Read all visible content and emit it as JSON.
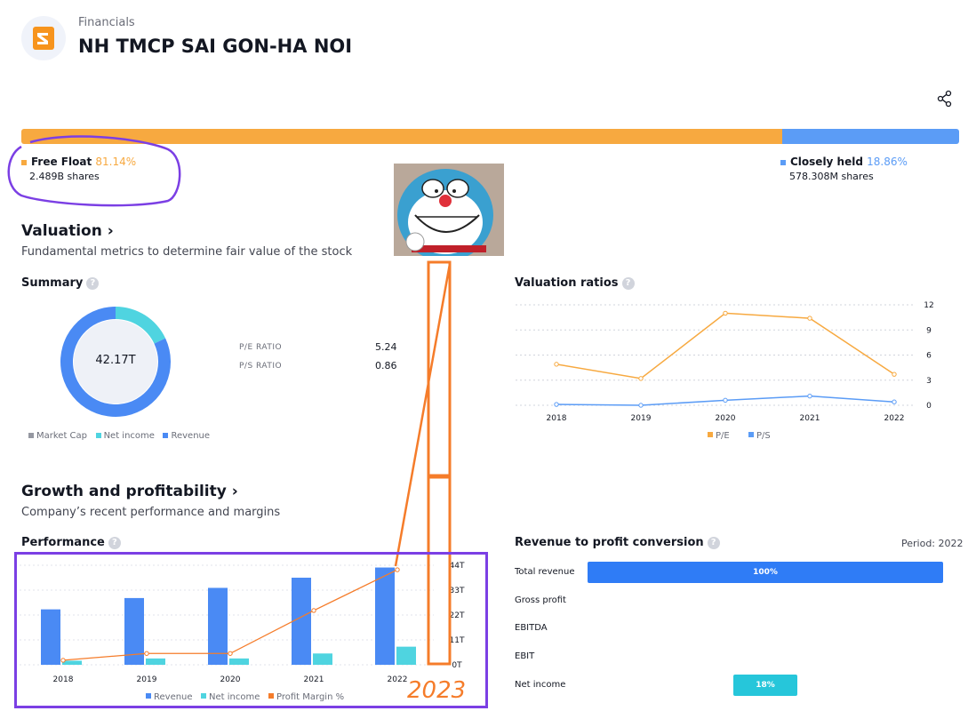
{
  "header": {
    "kicker": "Financials",
    "title": "NH TMCP SAI GON-HA NOI"
  },
  "float": {
    "free_label": "Free Float",
    "free_pct": "81.14%",
    "free_pct_value": 81.14,
    "free_shares": "2.489B shares",
    "closely_label": "Closely held",
    "closely_pct": "18.86%",
    "closely_shares": "578.308M shares",
    "free_color": "#f7a940",
    "closely_color": "#5b9cf6"
  },
  "valuation": {
    "heading": "Valuation",
    "description": "Fundamental metrics to determine fair value of the stock",
    "summary_title": "Summary",
    "donut_center": "42.17T",
    "ratios": [
      {
        "label": "P/E RATIO",
        "value": "5.24"
      },
      {
        "label": "P/S RATIO",
        "value": "0.86"
      }
    ],
    "summary_legend": [
      "Market Cap",
      "Net income",
      "Revenue"
    ],
    "ratios_title": "Valuation ratios"
  },
  "growth": {
    "heading": "Growth and profitability",
    "description": "Company’s recent performance and margins",
    "performance_title": "Performance",
    "performance_legend": [
      "Revenue",
      "Net income",
      "Profit Margin %"
    ],
    "conversion_title": "Revenue to profit conversion",
    "period": "Period: 2022",
    "conversion_rows": [
      {
        "label": "Total revenue",
        "pct": "100%",
        "value": 100
      },
      {
        "label": "Gross profit",
        "pct": "",
        "value": 0
      },
      {
        "label": "EBITDA",
        "pct": "",
        "value": 0
      },
      {
        "label": "EBIT",
        "pct": "",
        "value": 0
      },
      {
        "label": "Net income",
        "pct": "18%",
        "value": 18
      }
    ]
  },
  "annotation": {
    "handwritten": "2023"
  },
  "chart_data": [
    {
      "type": "pie",
      "title": "Summary",
      "center_label": "42.17T",
      "series": [
        {
          "name": "Revenue",
          "value": 82
        },
        {
          "name": "Net income",
          "value": 18
        }
      ],
      "colors": {
        "Revenue": "#4a8af4",
        "Net income": "#4fd4e0",
        "Market Cap": "#9598a1"
      }
    },
    {
      "type": "line",
      "title": "Valuation ratios",
      "categories": [
        "2018",
        "2019",
        "2020",
        "2021",
        "2022"
      ],
      "ylim": [
        0,
        12
      ],
      "yticks": [
        "12",
        "9",
        "6",
        "3",
        "0"
      ],
      "series": [
        {
          "name": "P/E",
          "values": [
            4.9,
            3.2,
            11.0,
            10.4,
            3.7
          ],
          "color": "#f7a940"
        },
        {
          "name": "P/S",
          "values": [
            0.1,
            0.0,
            0.6,
            1.1,
            0.4
          ],
          "color": "#5b9cf6"
        }
      ]
    },
    {
      "type": "bar",
      "title": "Performance",
      "categories": [
        "2018",
        "2019",
        "2020",
        "2021",
        "2022"
      ],
      "ylim": [
        0,
        44
      ],
      "yticks": [
        "44T",
        "33T",
        "22T",
        "11T",
        "0T"
      ],
      "series": [
        {
          "name": "Revenue",
          "values": [
            24.5,
            29.5,
            34.0,
            38.5,
            43.0
          ],
          "color": "#4a8af4"
        },
        {
          "name": "Net income",
          "values": [
            1.8,
            2.8,
            2.8,
            5.0,
            8.0
          ],
          "color": "#4fd4e0"
        },
        {
          "name": "Profit Margin %",
          "values": [
            2,
            5,
            5,
            24,
            42
          ],
          "color": "#f57c2a"
        }
      ]
    }
  ]
}
